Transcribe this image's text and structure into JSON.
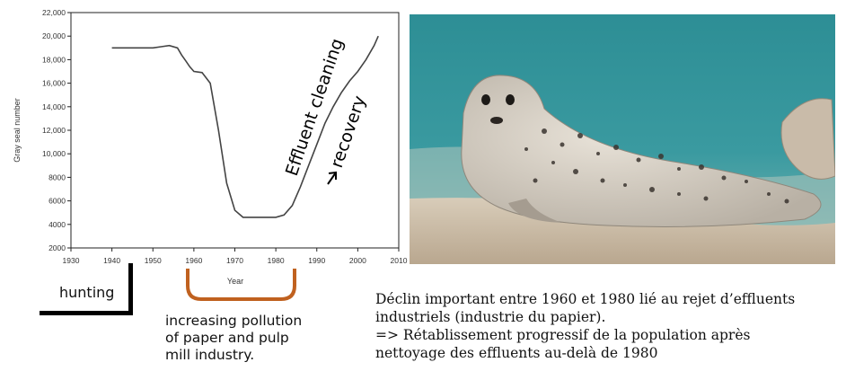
{
  "chart_data": {
    "type": "line",
    "title": "",
    "xlabel": "Year",
    "ylabel": "Gray seal number",
    "xlim": [
      1930,
      2010
    ],
    "ylim": [
      2000,
      22000
    ],
    "x_ticks": [
      "1930",
      "1940",
      "1950",
      "1960",
      "1970",
      "1980",
      "1990",
      "2000",
      "2010"
    ],
    "y_ticks": [
      "2000",
      "4000",
      "6000",
      "8000",
      "10,000",
      "12,000",
      "14,000",
      "16,000",
      "18,000",
      "20,000",
      "22,000"
    ],
    "grid": false,
    "series": [
      {
        "x": [
          1940,
          1945,
          1950,
          1952,
          1954,
          1956,
          1957,
          1958,
          1959,
          1960,
          1962,
          1964,
          1966,
          1968,
          1970,
          1972,
          1974,
          1976,
          1978,
          1980,
          1982,
          1984,
          1986,
          1988,
          1990,
          1992,
          1994,
          1996,
          1998,
          2000,
          2002,
          2004,
          2005
        ],
        "y": [
          19000,
          19000,
          19000,
          19100,
          19200,
          19000,
          18400,
          17900,
          17400,
          17000,
          16900,
          16000,
          12000,
          7500,
          5200,
          4600,
          4600,
          4600,
          4600,
          4600,
          4800,
          5600,
          7200,
          9000,
          10800,
          12600,
          14000,
          15200,
          16200,
          17000,
          18000,
          19200,
          20000
        ]
      }
    ],
    "annotations": [
      "Effluent cleaning",
      "recovery"
    ]
  },
  "captions": {
    "hunting": "hunting",
    "pollution": [
      "increasing pollution",
      "of paper and pulp",
      "mill industry."
    ]
  },
  "french_text": [
    "Déclin important entre 1960 et 1980 lié au rejet d’effluents",
    "industriels (industrie du papier).",
    "=> Rétablissement progressif de la population après",
    "nettoyage des effluents au-delà de 1980"
  ],
  "colors": {
    "bracket_pollution": "#c0611f",
    "line": "#444444",
    "water": "#2e8a93",
    "sand": "#c9b9a4"
  }
}
